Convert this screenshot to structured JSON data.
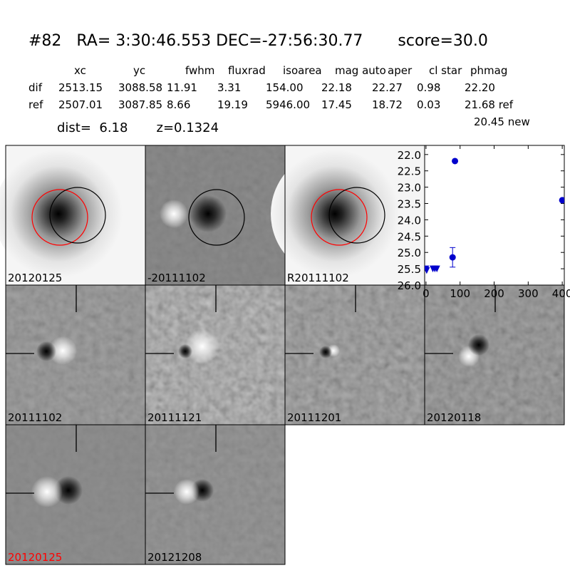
{
  "header": {
    "title": "#82   RA= 3:30:46.553 DEC=-27:56:30.77       score=30.0",
    "table": {
      "columns": [
        "xc",
        "yc",
        "fwhm",
        "fluxrad",
        "isoarea",
        "mag auto",
        "aper",
        "cl star",
        "phmag"
      ],
      "rows": [
        [
          "dif",
          "2513.15",
          "3088.58",
          "11.91",
          "3.31",
          "154.00",
          "22.18",
          "22.27",
          "0.98",
          "22.20"
        ],
        [
          "ref",
          "2507.01",
          "3087.85",
          "8.66",
          "19.19",
          "5946.00",
          "17.45",
          "18.72",
          "0.03",
          "21.68 ref"
        ]
      ],
      "note": "20.45 new"
    },
    "info": "dist=  6.18       z=0.1324"
  },
  "stamps": [
    {
      "label": "20120125"
    },
    {
      "label": "-20111102"
    },
    {
      "label": "R20111102"
    },
    {
      "label": "20111102"
    },
    {
      "label": "20111121"
    },
    {
      "label": "20111201"
    },
    {
      "label": "20120118"
    },
    {
      "label": "20120125",
      "color": "#ff0000"
    },
    {
      "label": "20121208"
    }
  ],
  "chart_data": {
    "type": "scatter",
    "invert_y": true,
    "xlim": [
      -4,
      406
    ],
    "xticks": [
      0,
      100,
      200,
      300,
      400
    ],
    "ylim": [
      26.0,
      21.72
    ],
    "yticks": [
      {
        "value": 22.0,
        "label": "22.0"
      },
      22.5,
      {
        "value": 23.0,
        "label": "23.0"
      },
      23.5,
      {
        "value": 24.0,
        "label": "24.0"
      },
      24.5,
      {
        "value": 25.0,
        "label": "25.0"
      },
      25.5,
      {
        "value": 26.0,
        "label": "26.0"
      }
    ],
    "series": [
      {
        "color": "#0000cc",
        "marker": "circle",
        "x": [
          78,
          85,
          400
        ],
        "values": [
          25.15,
          22.2,
          23.4
        ],
        "errors": [
          0.3,
          null,
          null
        ]
      },
      {
        "color": "#0000cc",
        "marker": "triangle-down",
        "x": [
          0,
          2,
          20,
          26,
          32
        ],
        "values": [
          25.5,
          25.55,
          25.5,
          25.5,
          25.5
        ]
      }
    ]
  }
}
